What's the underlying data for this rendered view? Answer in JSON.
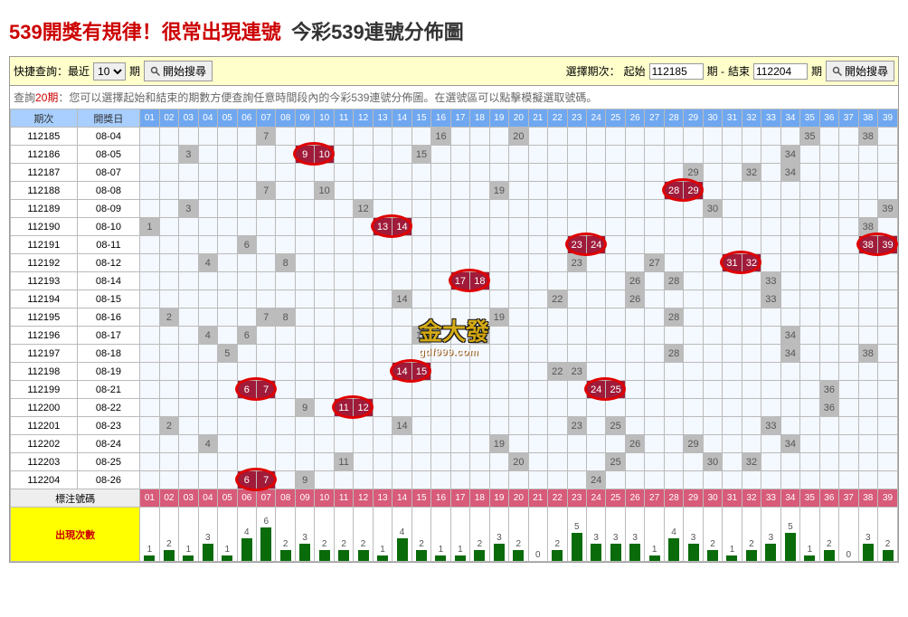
{
  "title": {
    "red_part": "539開獎有規律！很常出現連號",
    "black_part": "今彩539連號分佈圖"
  },
  "toolbar": {
    "quick_label": "快捷查詢：最近",
    "dropdown_value": "10",
    "period_suffix": "期",
    "search_btn": "開始搜尋",
    "select_label": "選擇期次：",
    "start_label": "起始",
    "start_value": "112185",
    "end_label": "結束",
    "end_value": "112204",
    "period_sep": "期 -"
  },
  "hint": {
    "prefix": "查詢",
    "count": "20期",
    "suffix": "：您可以選擇起始和結束的期數方便查詢任意時間段內的今彩539連號分佈圖。在選號區可以點擊模擬選取號碼。"
  },
  "headers": {
    "period": "期次",
    "date": "開獎日",
    "mark_label": "標注號碼",
    "freq_label": "出現次數"
  },
  "num_range": 39,
  "rows": [
    {
      "period": "112185",
      "date": "08-04",
      "gray": [
        7,
        16,
        20,
        35
      ],
      "hits": [],
      "pair_start": null,
      "gray_38": true
    },
    {
      "period": "112186",
      "date": "08-05",
      "gray": [
        3,
        15,
        34
      ],
      "hits": [
        9,
        10
      ],
      "pair_start": 9
    },
    {
      "period": "112187",
      "date": "08-07",
      "gray": [
        29,
        32,
        34
      ],
      "hits": [],
      "pair_start": null
    },
    {
      "period": "112188",
      "date": "08-08",
      "gray": [
        7,
        10,
        19
      ],
      "hits": [
        28,
        29
      ],
      "pair_start": 28
    },
    {
      "period": "112189",
      "date": "08-09",
      "gray": [
        3,
        12,
        30,
        39
      ],
      "hits": [],
      "pair_start": null
    },
    {
      "period": "112190",
      "date": "08-10",
      "gray": [
        1,
        38
      ],
      "hits": [
        13,
        14
      ],
      "pair_start": 13
    },
    {
      "period": "112191",
      "date": "08-11",
      "gray": [
        6
      ],
      "hits": [
        23,
        24,
        38,
        39
      ],
      "pair_start": 23,
      "pair2_start": 38
    },
    {
      "period": "112192",
      "date": "08-12",
      "gray": [
        4,
        8,
        23,
        27
      ],
      "hits": [
        31,
        32
      ],
      "pair_start": 31
    },
    {
      "period": "112193",
      "date": "08-14",
      "gray": [
        26,
        28,
        33
      ],
      "hits": [
        17,
        18
      ],
      "pair_start": 17
    },
    {
      "period": "112194",
      "date": "08-15",
      "gray": [
        14,
        22,
        26,
        33
      ],
      "hits": [],
      "pair_start": null
    },
    {
      "period": "112195",
      "date": "08-16",
      "gray": [
        2,
        7,
        8,
        19,
        28
      ],
      "hits": [],
      "pair_start": null
    },
    {
      "period": "112196",
      "date": "08-17",
      "gray": [
        4,
        6,
        15,
        18,
        34
      ],
      "hits": [],
      "pair_start": null
    },
    {
      "period": "112197",
      "date": "08-18",
      "gray": [
        5,
        28,
        34,
        38
      ],
      "hits": [],
      "pair_start": null
    },
    {
      "period": "112198",
      "date": "08-19",
      "gray": [
        22,
        23
      ],
      "hits": [
        14,
        15
      ],
      "pair_start": 14
    },
    {
      "period": "112199",
      "date": "08-21",
      "gray": [
        36
      ],
      "hits": [
        6,
        7,
        24,
        25
      ],
      "pair_start": 6,
      "pair2_start": 24
    },
    {
      "period": "112200",
      "date": "08-22",
      "gray": [
        9,
        36
      ],
      "hits": [
        11,
        12
      ],
      "pair_start": 11
    },
    {
      "period": "112201",
      "date": "08-23",
      "gray": [
        2,
        14,
        23,
        25,
        33
      ],
      "hits": [],
      "pair_start": null
    },
    {
      "period": "112202",
      "date": "08-24",
      "gray": [
        4,
        19,
        26,
        29,
        34
      ],
      "hits": [],
      "pair_start": null
    },
    {
      "period": "112203",
      "date": "08-25",
      "gray": [
        11,
        20,
        25,
        30,
        32
      ],
      "hits": [],
      "pair_start": null
    },
    {
      "period": "112204",
      "date": "08-26",
      "gray": [
        9,
        24
      ],
      "hits": [
        6,
        7
      ],
      "pair_start": 6
    }
  ],
  "frequency": [
    1,
    2,
    1,
    3,
    1,
    4,
    6,
    2,
    3,
    2,
    2,
    2,
    1,
    4,
    2,
    1,
    1,
    2,
    3,
    2,
    0,
    2,
    5,
    3,
    3,
    3,
    1,
    4,
    3,
    2,
    1,
    2,
    3,
    5,
    1,
    2,
    0,
    3,
    2
  ],
  "freq_max": 8,
  "watermark": {
    "main": "金大發",
    "sub": "gdf999.com"
  },
  "colors": {
    "header_bg": "#a8cfff",
    "num_head_bg": "#6fa8f0",
    "hit_bg": "#a01b3a",
    "gray_bg": "#bcbcbc",
    "circle": "#e00000",
    "bar": "#0a6b0a",
    "mark_bg": "#d85b7a"
  }
}
